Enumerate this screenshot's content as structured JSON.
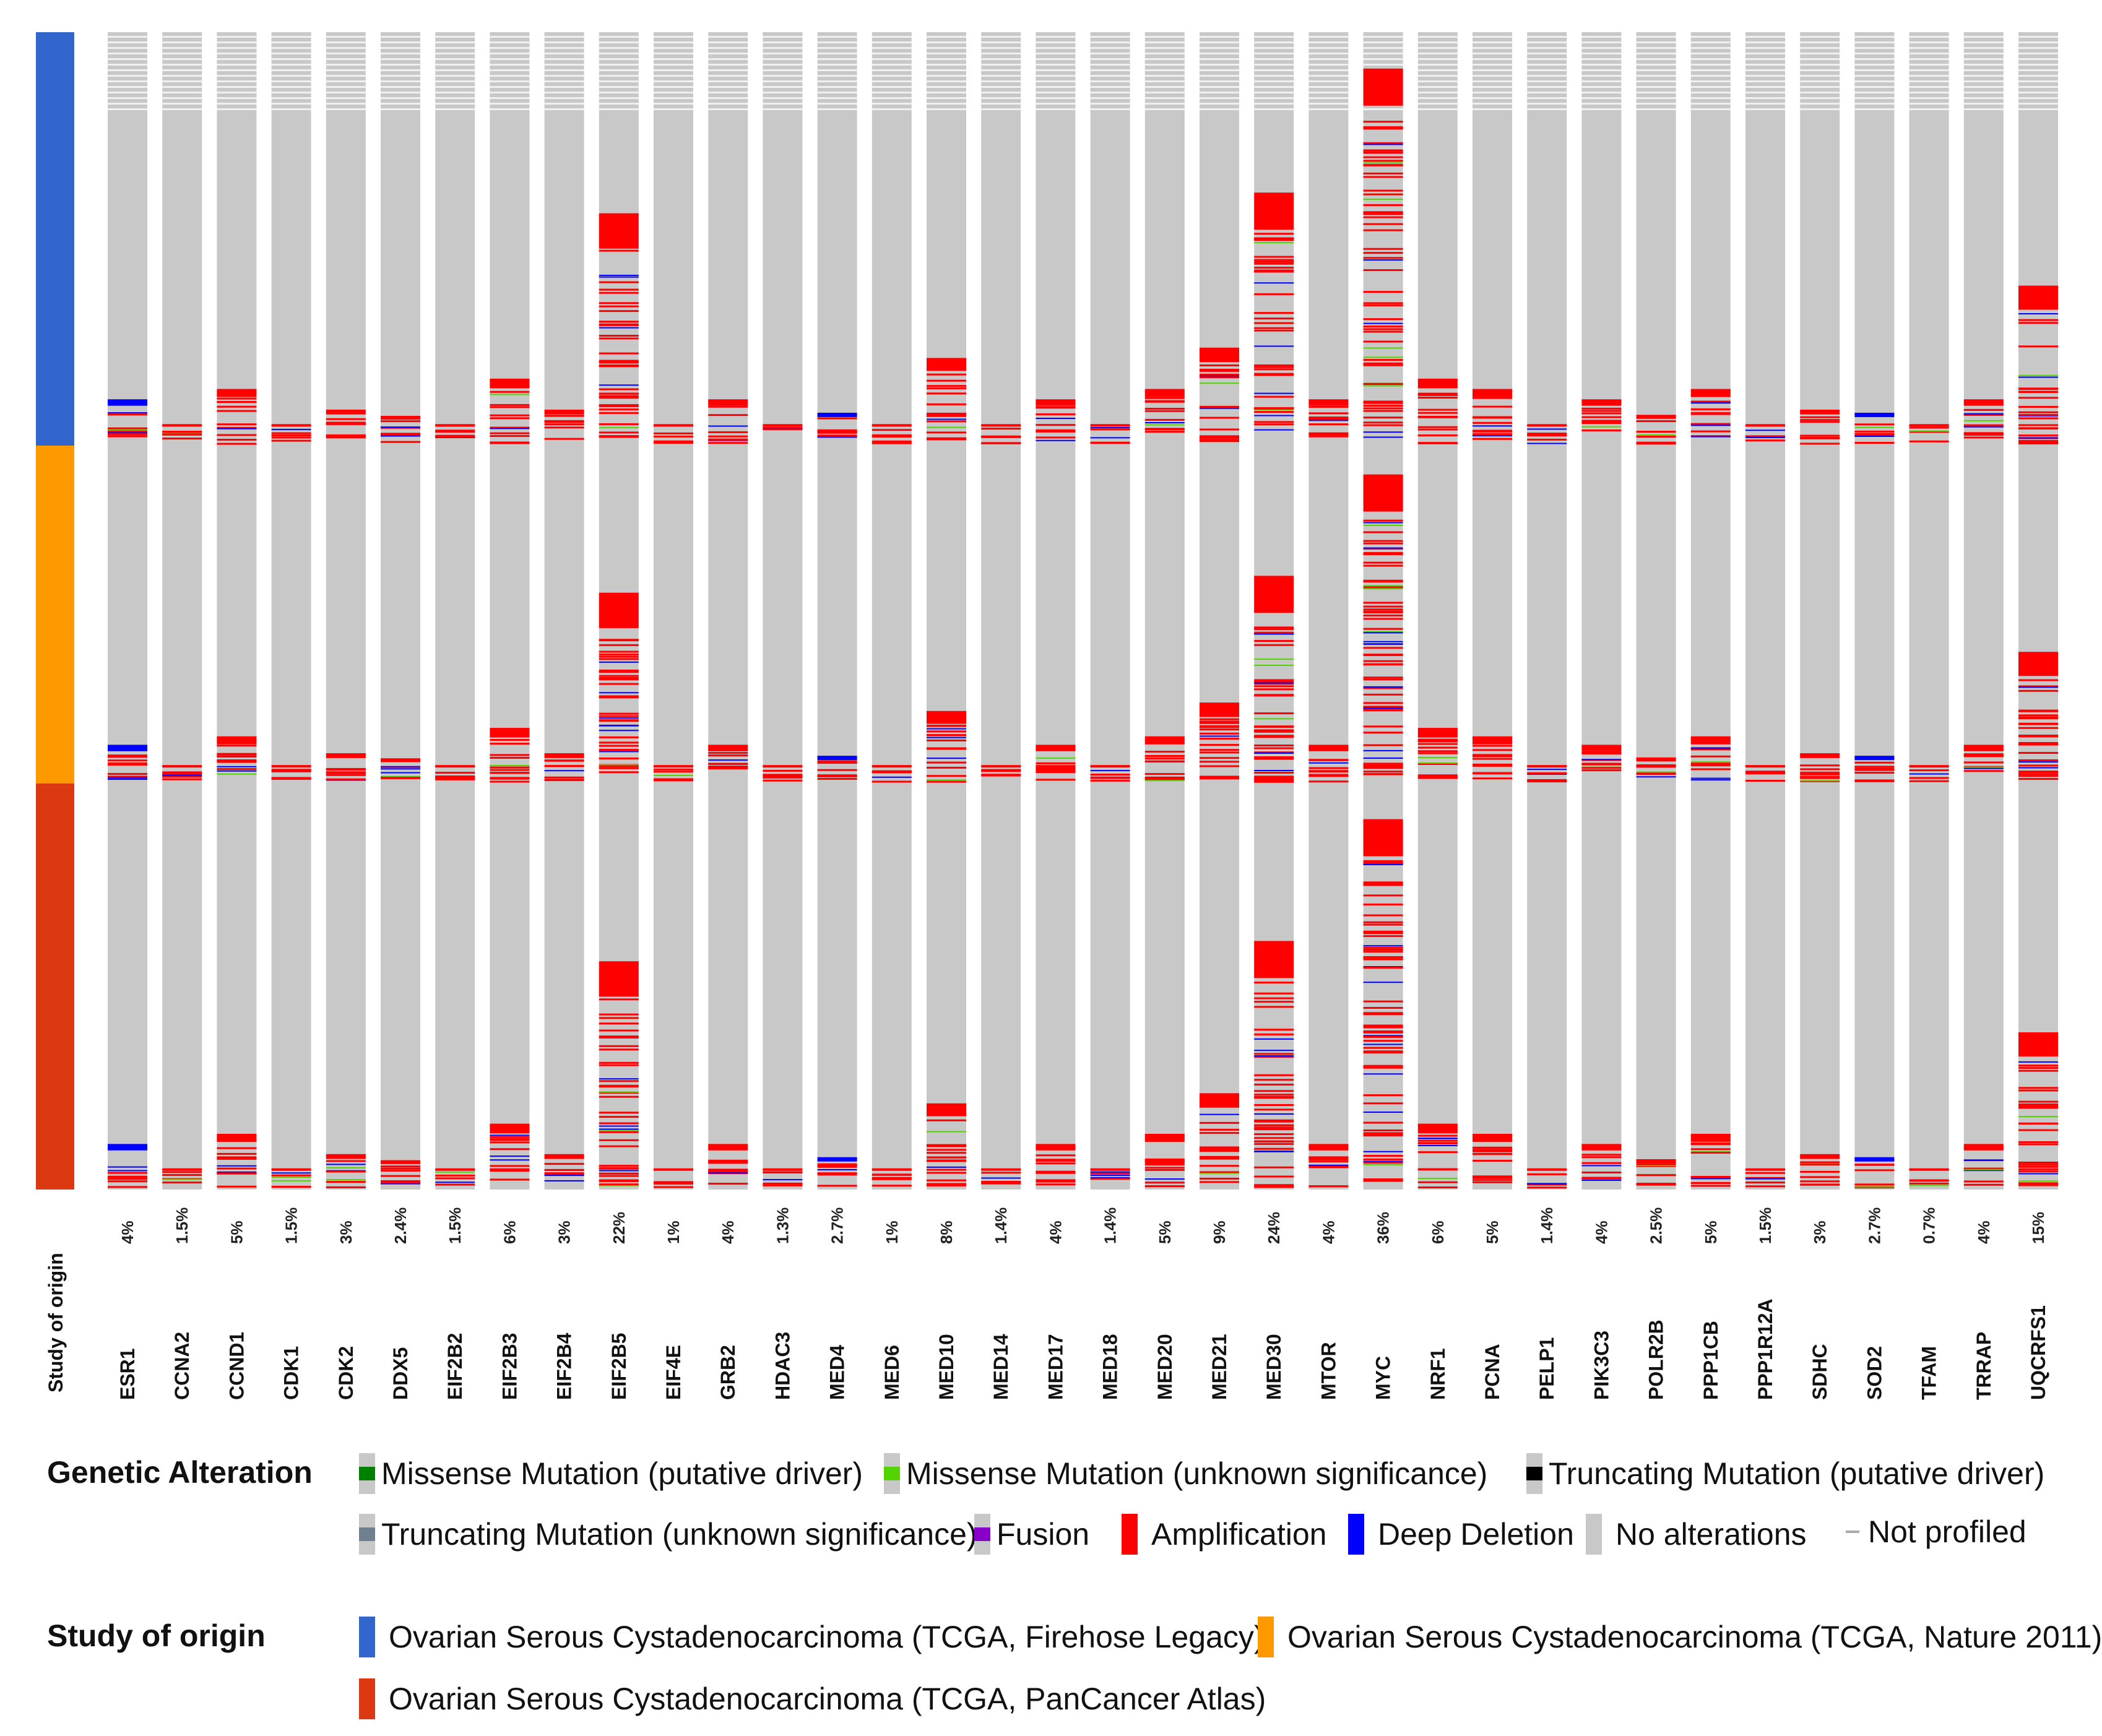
{
  "chart_data": {
    "type": "oncoprint",
    "track_label": "Study of origin",
    "studies": [
      {
        "name": "Ovarian Serous Cystadenocarcinoma (TCGA, Firehose Legacy)",
        "color": "#3366cc"
      },
      {
        "name": "Ovarian Serous Cystadenocarcinoma (TCGA, Nature 2011)",
        "color": "#ff9900"
      },
      {
        "name": "Ovarian Serous Cystadenocarcinoma (TCGA, PanCancer Atlas)",
        "color": "#dc3912"
      }
    ],
    "genes": [
      {
        "name": "ESR1",
        "percent": "4%"
      },
      {
        "name": "CCNA2",
        "percent": "1.5%"
      },
      {
        "name": "CCND1",
        "percent": "5%"
      },
      {
        "name": "CDK1",
        "percent": "1.5%"
      },
      {
        "name": "CDK2",
        "percent": "3%"
      },
      {
        "name": "DDX5",
        "percent": "2.4%"
      },
      {
        "name": "EIF2B2",
        "percent": "1.5%"
      },
      {
        "name": "EIF2B3",
        "percent": "6%"
      },
      {
        "name": "EIF2B4",
        "percent": "3%"
      },
      {
        "name": "EIF2B5",
        "percent": "22%"
      },
      {
        "name": "EIF4E",
        "percent": "1%"
      },
      {
        "name": "GRB2",
        "percent": "4%"
      },
      {
        "name": "HDAC3",
        "percent": "1.3%"
      },
      {
        "name": "MED4",
        "percent": "2.7%"
      },
      {
        "name": "MED6",
        "percent": "1%"
      },
      {
        "name": "MED10",
        "percent": "8%"
      },
      {
        "name": "MED14",
        "percent": "1.4%"
      },
      {
        "name": "MED17",
        "percent": "4%"
      },
      {
        "name": "MED18",
        "percent": "1.4%"
      },
      {
        "name": "MED20",
        "percent": "5%"
      },
      {
        "name": "MED21",
        "percent": "9%"
      },
      {
        "name": "MED30",
        "percent": "24%"
      },
      {
        "name": "MTOR",
        "percent": "4%"
      },
      {
        "name": "MYC",
        "percent": "36%"
      },
      {
        "name": "NRF1",
        "percent": "6%"
      },
      {
        "name": "PCNA",
        "percent": "5%"
      },
      {
        "name": "PELP1",
        "percent": "1.4%"
      },
      {
        "name": "PIK3C3",
        "percent": "4%"
      },
      {
        "name": "POLR2B",
        "percent": "2.5%"
      },
      {
        "name": "PPP1CB",
        "percent": "5%"
      },
      {
        "name": "PPP1R12A",
        "percent": "1.5%"
      },
      {
        "name": "SDHC",
        "percent": "3%"
      },
      {
        "name": "SOD2",
        "percent": "2.7%"
      },
      {
        "name": "TFAM",
        "percent": "0.7%"
      },
      {
        "name": "TRRAP",
        "percent": "4%"
      },
      {
        "name": "UQCRFS1",
        "percent": "15%"
      }
    ]
  },
  "legend": {
    "genetic_alteration_title": "Genetic Alteration",
    "alterations": [
      {
        "key": "missense_driver",
        "label": "Missense Mutation (putative driver)",
        "color": "#008000"
      },
      {
        "key": "missense_unknown",
        "label": "Missense Mutation (unknown significance)",
        "color": "#53d400"
      },
      {
        "key": "truncating_driver",
        "label": "Truncating Mutation (putative driver)",
        "color": "#000000"
      },
      {
        "key": "truncating_unknown",
        "label": "Truncating Mutation (unknown significance)",
        "color": "#708090"
      },
      {
        "key": "fusion",
        "label": "Fusion",
        "color": "#8b00c9"
      },
      {
        "key": "amplification",
        "label": "Amplification",
        "color": "#ff0000"
      },
      {
        "key": "deep_deletion",
        "label": "Deep Deletion",
        "color": "#0000ff"
      },
      {
        "key": "no_alterations",
        "label": "No alterations",
        "color": "#c8c8c8"
      },
      {
        "key": "not_profiled",
        "label": "Not profiled",
        "color": "#aaaaaa"
      }
    ],
    "study_title": "Study of origin"
  }
}
